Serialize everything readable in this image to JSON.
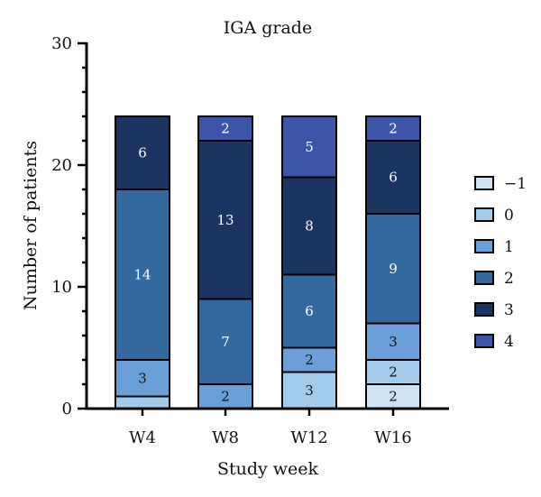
{
  "chart_data": {
    "type": "bar",
    "stacked": true,
    "title": "IGA grade",
    "xlabel": "Study week",
    "ylabel": "Number of patients",
    "ylim": [
      0,
      30
    ],
    "yticks": [
      0,
      10,
      20,
      30
    ],
    "categories": [
      "W4",
      "W8",
      "W12",
      "W16"
    ],
    "series": [
      {
        "name": "−1",
        "color": "#cfe2f5",
        "values": [
          0,
          0,
          0,
          2
        ]
      },
      {
        "name": "0",
        "color": "#a3ccec",
        "values": [
          1,
          0,
          3,
          2
        ]
      },
      {
        "name": "1",
        "color": "#6a9fd8",
        "values": [
          3,
          2,
          2,
          3
        ]
      },
      {
        "name": "2",
        "color": "#33699f",
        "values": [
          14,
          7,
          6,
          9
        ]
      },
      {
        "name": "3",
        "color": "#1c3461",
        "values": [
          6,
          13,
          8,
          6
        ]
      },
      {
        "name": "4",
        "color": "#3d55a8",
        "values": [
          0,
          2,
          5,
          2
        ]
      }
    ],
    "segment_labels": [
      [
        "",
        "",
        "3",
        "14",
        "6",
        ""
      ],
      [
        "",
        "",
        "2",
        "7",
        "13",
        "2"
      ],
      [
        "",
        "3",
        "2",
        "6",
        "8",
        "5"
      ],
      [
        "2",
        "2",
        "3",
        "9",
        "6",
        "2"
      ]
    ],
    "legend": {
      "position": "right"
    },
    "grid": false
  }
}
